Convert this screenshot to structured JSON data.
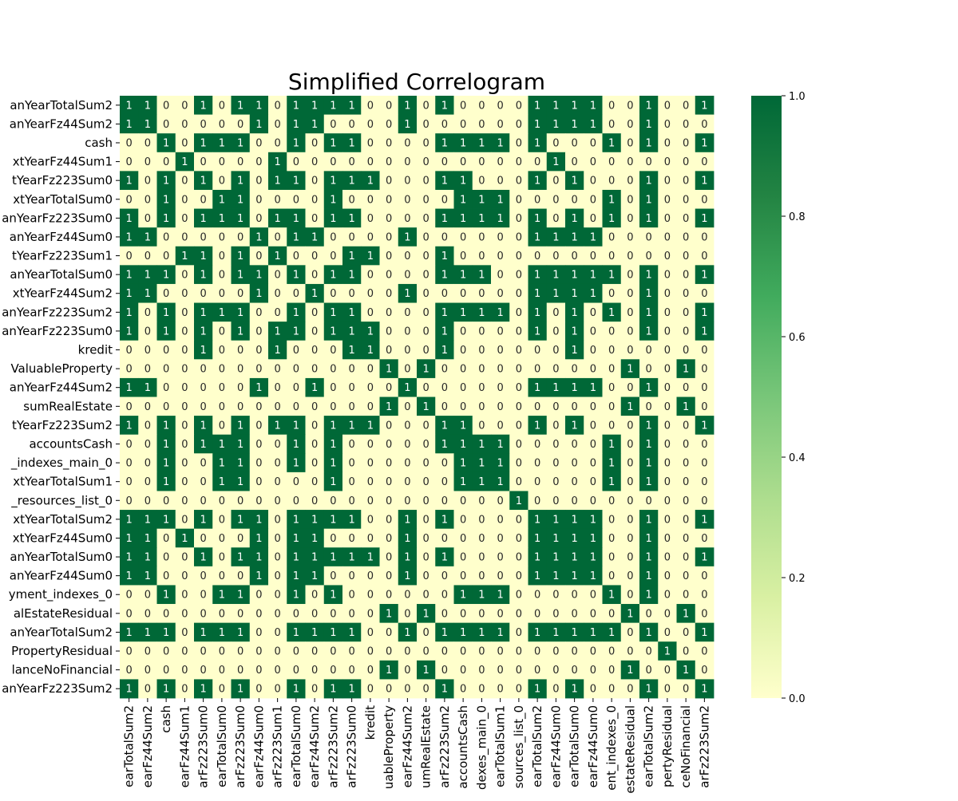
{
  "chart_data": {
    "type": "heatmap",
    "title": "Simplified Correlogram",
    "row_labels": [
      "anYearTotalSum2",
      "anYearFz44Sum2",
      "cash",
      "xtYearFz44Sum1",
      "tYearFz223Sum0",
      "xtYearTotalSum0",
      "anYearFz223Sum0",
      "anYearFz44Sum0",
      "tYearFz223Sum1",
      "anYearTotalSum0",
      "xtYearFz44Sum2",
      "anYearFz223Sum2",
      "anYearFz223Sum0",
      "kredit",
      "ValuableProperty",
      "anYearFz44Sum2",
      "sumRealEstate",
      "tYearFz223Sum2",
      "accountsCash",
      "_indexes_main_0",
      "xtYearTotalSum1",
      "_resources_list_0",
      "xtYearTotalSum2",
      "xtYearFz44Sum0",
      "anYearTotalSum0",
      "anYearFz44Sum0",
      "yment_indexes_0",
      "alEstateResidual",
      "anYearTotalSum2",
      "PropertyResidual",
      "lanceNoFinancial",
      "anYearFz223Sum2"
    ],
    "col_labels": [
      "earTotalSum2",
      "earFz44Sum2",
      "cash",
      "earFz44Sum1",
      "arFz223Sum0",
      "earTotalSum0",
      "arFz223Sum0",
      "earFz44Sum0",
      "arFz223Sum1",
      "earTotalSum0",
      "earFz44Sum2",
      "arFz223Sum2",
      "arFz223Sum0",
      "kredit",
      "uableProperty",
      "earFz44Sum2",
      "umRealEstate",
      "arFz223Sum2",
      "accountsCash",
      "dexes_main_0",
      "earTotalSum1",
      "sources_list_0",
      "earTotalSum2",
      "earFz44Sum0",
      "earTotalSum0",
      "earFz44Sum0",
      "ent_indexes_0",
      "estateResidual",
      "earTotalSum2",
      "pertyResidual",
      "ceNoFinancial",
      "arFz223Sum2"
    ],
    "values": [
      [
        1,
        1,
        0,
        0,
        1,
        0,
        1,
        1,
        0,
        1,
        1,
        1,
        1,
        0,
        0,
        1,
        0,
        1,
        0,
        0,
        0,
        0,
        1,
        1,
        1,
        1,
        0,
        0,
        1,
        0,
        0,
        1
      ],
      [
        1,
        1,
        0,
        0,
        0,
        0,
        0,
        1,
        0,
        1,
        1,
        0,
        0,
        0,
        0,
        1,
        0,
        0,
        0,
        0,
        0,
        0,
        1,
        1,
        1,
        1,
        0,
        0,
        1,
        0,
        0,
        0
      ],
      [
        0,
        0,
        1,
        0,
        1,
        1,
        1,
        0,
        0,
        1,
        0,
        1,
        1,
        0,
        0,
        0,
        0,
        1,
        1,
        1,
        1,
        0,
        1,
        0,
        0,
        0,
        1,
        0,
        1,
        0,
        0,
        1
      ],
      [
        0,
        0,
        0,
        1,
        0,
        0,
        0,
        0,
        1,
        0,
        0,
        0,
        0,
        0,
        0,
        0,
        0,
        0,
        0,
        0,
        0,
        0,
        0,
        1,
        0,
        0,
        0,
        0,
        0,
        0,
        0,
        0
      ],
      [
        1,
        0,
        1,
        0,
        1,
        0,
        1,
        0,
        1,
        1,
        0,
        1,
        1,
        1,
        0,
        0,
        0,
        1,
        1,
        0,
        0,
        0,
        1,
        0,
        1,
        0,
        0,
        0,
        1,
        0,
        0,
        1
      ],
      [
        0,
        0,
        1,
        0,
        0,
        1,
        1,
        0,
        0,
        0,
        0,
        1,
        0,
        0,
        0,
        0,
        0,
        0,
        1,
        1,
        1,
        0,
        0,
        0,
        0,
        0,
        1,
        0,
        1,
        0,
        0,
        0
      ],
      [
        1,
        0,
        1,
        0,
        1,
        1,
        1,
        0,
        1,
        1,
        0,
        1,
        1,
        0,
        0,
        0,
        0,
        1,
        1,
        1,
        1,
        0,
        1,
        0,
        1,
        0,
        1,
        0,
        1,
        0,
        0,
        1
      ],
      [
        1,
        1,
        0,
        0,
        0,
        0,
        0,
        1,
        0,
        1,
        1,
        0,
        0,
        0,
        0,
        1,
        0,
        0,
        0,
        0,
        0,
        0,
        1,
        1,
        1,
        1,
        0,
        0,
        0,
        0,
        0,
        0
      ],
      [
        0,
        0,
        0,
        1,
        1,
        0,
        1,
        0,
        1,
        0,
        0,
        0,
        1,
        1,
        0,
        0,
        0,
        1,
        0,
        0,
        0,
        0,
        0,
        0,
        0,
        0,
        0,
        0,
        0,
        0,
        0,
        0
      ],
      [
        1,
        1,
        1,
        0,
        1,
        0,
        1,
        1,
        0,
        1,
        0,
        1,
        1,
        0,
        0,
        0,
        0,
        1,
        1,
        1,
        0,
        0,
        1,
        1,
        1,
        1,
        1,
        0,
        1,
        0,
        0,
        1
      ],
      [
        1,
        1,
        0,
        0,
        0,
        0,
        0,
        1,
        0,
        0,
        1,
        0,
        0,
        0,
        0,
        1,
        0,
        0,
        0,
        0,
        0,
        0,
        1,
        1,
        1,
        1,
        0,
        0,
        1,
        0,
        0,
        0
      ],
      [
        1,
        0,
        1,
        0,
        1,
        1,
        1,
        0,
        0,
        1,
        0,
        1,
        1,
        0,
        0,
        0,
        0,
        1,
        1,
        1,
        1,
        0,
        1,
        0,
        1,
        0,
        1,
        0,
        1,
        0,
        0,
        1
      ],
      [
        1,
        0,
        1,
        0,
        1,
        0,
        1,
        0,
        1,
        1,
        0,
        1,
        1,
        1,
        0,
        0,
        0,
        1,
        0,
        0,
        0,
        0,
        1,
        0,
        1,
        0,
        0,
        0,
        1,
        0,
        0,
        1
      ],
      [
        0,
        0,
        0,
        0,
        1,
        0,
        0,
        0,
        1,
        0,
        0,
        0,
        1,
        1,
        0,
        0,
        0,
        1,
        0,
        0,
        0,
        0,
        0,
        0,
        1,
        0,
        0,
        0,
        0,
        0,
        0,
        0
      ],
      [
        0,
        0,
        0,
        0,
        0,
        0,
        0,
        0,
        0,
        0,
        0,
        0,
        0,
        0,
        1,
        0,
        1,
        0,
        0,
        0,
        0,
        0,
        0,
        0,
        0,
        0,
        0,
        1,
        0,
        0,
        1,
        0
      ],
      [
        1,
        1,
        0,
        0,
        0,
        0,
        0,
        1,
        0,
        0,
        1,
        0,
        0,
        0,
        0,
        1,
        0,
        0,
        0,
        0,
        0,
        0,
        1,
        1,
        1,
        1,
        0,
        0,
        1,
        0,
        0,
        0
      ],
      [
        0,
        0,
        0,
        0,
        0,
        0,
        0,
        0,
        0,
        0,
        0,
        0,
        0,
        0,
        1,
        0,
        1,
        0,
        0,
        0,
        0,
        0,
        0,
        0,
        0,
        0,
        0,
        1,
        0,
        0,
        1,
        0
      ],
      [
        1,
        0,
        1,
        0,
        1,
        0,
        1,
        0,
        1,
        1,
        0,
        1,
        1,
        1,
        0,
        0,
        0,
        1,
        1,
        0,
        0,
        0,
        1,
        0,
        1,
        0,
        0,
        0,
        1,
        0,
        0,
        1
      ],
      [
        0,
        0,
        1,
        0,
        1,
        1,
        1,
        0,
        0,
        1,
        0,
        1,
        0,
        0,
        0,
        0,
        0,
        1,
        1,
        1,
        1,
        0,
        0,
        0,
        0,
        0,
        1,
        0,
        1,
        0,
        0,
        0
      ],
      [
        0,
        0,
        1,
        0,
        0,
        1,
        1,
        0,
        0,
        1,
        0,
        1,
        0,
        0,
        0,
        0,
        0,
        0,
        1,
        1,
        1,
        0,
        0,
        0,
        0,
        0,
        1,
        0,
        1,
        0,
        0,
        0
      ],
      [
        0,
        0,
        1,
        0,
        0,
        1,
        1,
        0,
        0,
        0,
        0,
        1,
        0,
        0,
        0,
        0,
        0,
        0,
        1,
        1,
        1,
        0,
        0,
        0,
        0,
        0,
        1,
        0,
        1,
        0,
        0,
        0
      ],
      [
        0,
        0,
        0,
        0,
        0,
        0,
        0,
        0,
        0,
        0,
        0,
        0,
        0,
        0,
        0,
        0,
        0,
        0,
        0,
        0,
        0,
        1,
        0,
        0,
        0,
        0,
        0,
        0,
        0,
        0,
        0,
        0
      ],
      [
        1,
        1,
        1,
        0,
        1,
        0,
        1,
        1,
        0,
        1,
        1,
        1,
        1,
        0,
        0,
        1,
        0,
        1,
        0,
        0,
        0,
        0,
        1,
        1,
        1,
        1,
        0,
        0,
        1,
        0,
        0,
        1
      ],
      [
        1,
        1,
        0,
        1,
        0,
        0,
        0,
        1,
        0,
        1,
        1,
        0,
        0,
        0,
        0,
        1,
        0,
        0,
        0,
        0,
        0,
        0,
        1,
        1,
        1,
        1,
        0,
        0,
        1,
        0,
        0,
        0
      ],
      [
        1,
        1,
        0,
        0,
        1,
        0,
        1,
        1,
        0,
        1,
        1,
        1,
        1,
        1,
        0,
        1,
        0,
        1,
        0,
        0,
        0,
        0,
        1,
        1,
        1,
        1,
        0,
        0,
        1,
        0,
        0,
        1
      ],
      [
        1,
        1,
        0,
        0,
        0,
        0,
        0,
        1,
        0,
        1,
        1,
        0,
        0,
        0,
        0,
        1,
        0,
        0,
        0,
        0,
        0,
        0,
        1,
        1,
        1,
        1,
        0,
        0,
        1,
        0,
        0,
        0
      ],
      [
        0,
        0,
        1,
        0,
        0,
        1,
        1,
        0,
        0,
        1,
        0,
        1,
        0,
        0,
        0,
        0,
        0,
        0,
        1,
        1,
        1,
        0,
        0,
        0,
        0,
        0,
        1,
        0,
        1,
        0,
        0,
        0
      ],
      [
        0,
        0,
        0,
        0,
        0,
        0,
        0,
        0,
        0,
        0,
        0,
        0,
        0,
        0,
        1,
        0,
        1,
        0,
        0,
        0,
        0,
        0,
        0,
        0,
        0,
        0,
        0,
        1,
        0,
        0,
        1,
        0
      ],
      [
        1,
        1,
        1,
        0,
        1,
        1,
        1,
        0,
        0,
        1,
        1,
        1,
        1,
        0,
        0,
        1,
        0,
        1,
        1,
        1,
        1,
        0,
        1,
        1,
        1,
        1,
        1,
        0,
        1,
        0,
        0,
        1
      ],
      [
        0,
        0,
        0,
        0,
        0,
        0,
        0,
        0,
        0,
        0,
        0,
        0,
        0,
        0,
        0,
        0,
        0,
        0,
        0,
        0,
        0,
        0,
        0,
        0,
        0,
        0,
        0,
        0,
        0,
        1,
        0,
        0
      ],
      [
        0,
        0,
        0,
        0,
        0,
        0,
        0,
        0,
        0,
        0,
        0,
        0,
        0,
        0,
        1,
        0,
        1,
        0,
        0,
        0,
        0,
        0,
        0,
        0,
        0,
        0,
        0,
        1,
        0,
        0,
        1,
        0
      ],
      [
        1,
        0,
        1,
        0,
        1,
        0,
        1,
        0,
        0,
        1,
        0,
        1,
        1,
        0,
        0,
        0,
        0,
        1,
        0,
        0,
        0,
        0,
        1,
        0,
        1,
        0,
        0,
        0,
        1,
        0,
        0,
        1
      ]
    ],
    "vmin": 0,
    "vmax": 1,
    "colormap": [
      "#ffffcc",
      "#d9f0a3",
      "#addd8e",
      "#78c679",
      "#41ab5d",
      "#238443",
      "#006837"
    ],
    "colorbar_ticks": [
      "0.0",
      "0.2",
      "0.4",
      "0.6",
      "0.8",
      "1.0"
    ],
    "annotations": true,
    "grid": false,
    "legend": "colorbar-right"
  }
}
